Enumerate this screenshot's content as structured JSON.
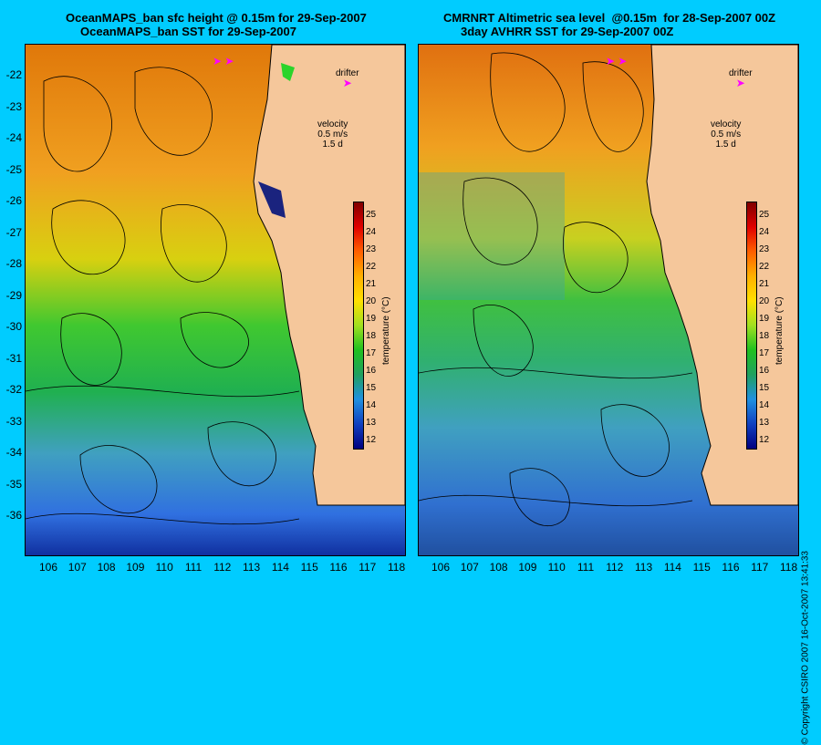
{
  "left": {
    "title_line1": "OceanMAPS_ban sfc height @ 0.15m for 29-Sep-2007",
    "title_line2": "OceanMAPS_ban SST for 29-Sep-2007"
  },
  "right": {
    "title_line1": "CMRNRT Altimetric sea level  @0.15m  for 28-Sep-2007 00Z",
    "title_line2": "3day AVHRR SST for 29-Sep-2007 00Z"
  },
  "legend": {
    "drifter": "drifter",
    "velocity": "velocity",
    "velocity_scale": "0.5 m/s",
    "duration": "1.5 d"
  },
  "colorbar": {
    "label": "temperature (°C)",
    "ticks": [
      "25",
      "24",
      "23",
      "22",
      "21",
      "20",
      "19",
      "18",
      "17",
      "16",
      "15",
      "14",
      "13",
      "12"
    ]
  },
  "axes": {
    "lat_ticks": [
      "-22",
      "-23",
      "-24",
      "-25",
      "-26",
      "-27",
      "-28",
      "-29",
      "-30",
      "-31",
      "-32",
      "-33",
      "-34",
      "-35",
      "-36"
    ],
    "lon_ticks": [
      "106",
      "107",
      "108",
      "109",
      "110",
      "111",
      "112",
      "113",
      "114",
      "115",
      "116",
      "117",
      "118"
    ]
  },
  "copyright": "© Copyright CSIRO 2007    16-Oct-2007 13:41:33",
  "colors": {
    "background": "#00ccff",
    "land": "#f5c79b",
    "drifter": "#ff00ff"
  }
}
